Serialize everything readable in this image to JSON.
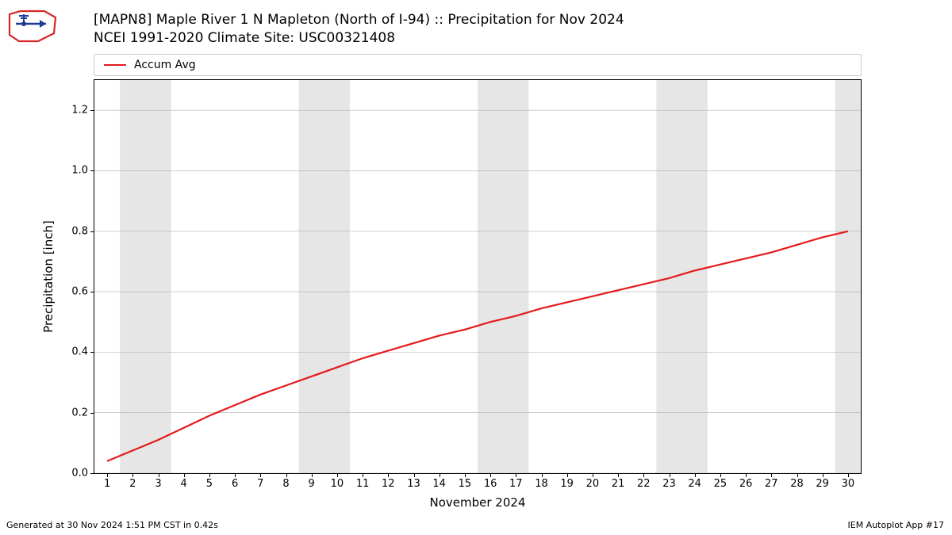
{
  "title_line1": "[MAPN8] Maple River 1 N Mapleton (North of I-94) :: Precipitation for Nov 2024",
  "title_line2": "NCEI 1991-2020 Climate Site: USC00321408",
  "ylabel": "Precipitation [inch]",
  "xlabel": "November 2024",
  "footer_left": "Generated at 30 Nov 2024 1:51 PM CST in 0.42s",
  "footer_right": "IEM Autoplot App #17",
  "legend": {
    "label": "Accum Avg",
    "color": "#e41a1c"
  },
  "chart": {
    "type": "line",
    "background_color": "#ffffff",
    "weekend_band_color": "#e6e6e6",
    "grid_color": "#b0b0b0",
    "grid_width": 0.6,
    "line_color": "#e41a1c",
    "line_width": 2.2,
    "xlim": [
      0.5,
      30.5
    ],
    "ylim": [
      0.0,
      1.3
    ],
    "yticks": [
      0.0,
      0.2,
      0.4,
      0.6,
      0.8,
      1.0,
      1.2
    ],
    "ytick_labels": [
      "0.0",
      "0.2",
      "0.4",
      "0.6",
      "0.8",
      "1.0",
      "1.2"
    ],
    "xticks": [
      1,
      2,
      3,
      4,
      5,
      6,
      7,
      8,
      9,
      10,
      11,
      12,
      13,
      14,
      15,
      16,
      17,
      18,
      19,
      20,
      21,
      22,
      23,
      24,
      25,
      26,
      27,
      28,
      29,
      30
    ],
    "xtick_labels": [
      "1",
      "2",
      "3",
      "4",
      "5",
      "6",
      "7",
      "8",
      "9",
      "10",
      "11",
      "12",
      "13",
      "14",
      "15",
      "16",
      "17",
      "18",
      "19",
      "20",
      "21",
      "22",
      "23",
      "24",
      "25",
      "26",
      "27",
      "28",
      "29",
      "30"
    ],
    "weekend_bands": [
      [
        1.5,
        3.5
      ],
      [
        8.5,
        10.5
      ],
      [
        15.5,
        17.5
      ],
      [
        22.5,
        24.5
      ],
      [
        29.5,
        30.5
      ]
    ],
    "x": [
      1,
      2,
      3,
      4,
      5,
      6,
      7,
      8,
      9,
      10,
      11,
      12,
      13,
      14,
      15,
      16,
      17,
      18,
      19,
      20,
      21,
      22,
      23,
      24,
      25,
      26,
      27,
      28,
      29,
      30
    ],
    "y": [
      0.04,
      0.075,
      0.11,
      0.15,
      0.19,
      0.225,
      0.26,
      0.29,
      0.32,
      0.35,
      0.38,
      0.405,
      0.43,
      0.455,
      0.475,
      0.5,
      0.52,
      0.545,
      0.565,
      0.585,
      0.605,
      0.625,
      0.645,
      0.67,
      0.69,
      0.71,
      0.73,
      0.755,
      0.78,
      0.8
    ]
  }
}
